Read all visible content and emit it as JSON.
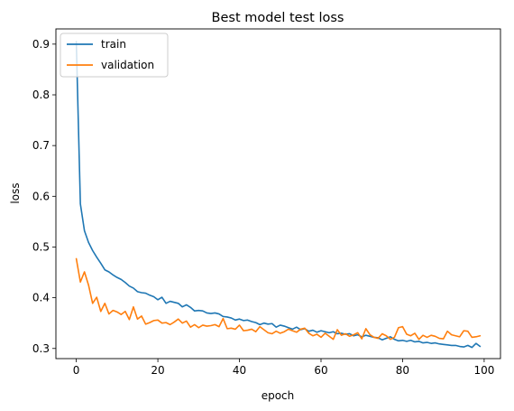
{
  "chart_data": {
    "type": "line",
    "title": "Best model test loss",
    "xlabel": "epoch",
    "ylabel": "loss",
    "xlim": [
      -5,
      104
    ],
    "ylim": [
      0.28,
      0.93
    ],
    "xticks": [
      0,
      20,
      40,
      60,
      80,
      100
    ],
    "yticks": [
      0.3,
      0.4,
      0.5,
      0.6,
      0.7,
      0.8,
      0.9
    ],
    "legend": {
      "placement": "upper-left"
    },
    "grid": false,
    "series": [
      {
        "name": "train",
        "color": "#1f77b4",
        "values": [
          0.905,
          0.585,
          0.532,
          0.509,
          0.493,
          0.48,
          0.468,
          0.455,
          0.451,
          0.445,
          0.44,
          0.436,
          0.43,
          0.423,
          0.419,
          0.412,
          0.41,
          0.409,
          0.405,
          0.402,
          0.396,
          0.401,
          0.389,
          0.393,
          0.391,
          0.389,
          0.382,
          0.386,
          0.381,
          0.374,
          0.375,
          0.374,
          0.37,
          0.369,
          0.37,
          0.368,
          0.363,
          0.362,
          0.36,
          0.356,
          0.358,
          0.355,
          0.356,
          0.353,
          0.351,
          0.347,
          0.35,
          0.348,
          0.349,
          0.342,
          0.346,
          0.344,
          0.341,
          0.338,
          0.342,
          0.337,
          0.339,
          0.334,
          0.336,
          0.332,
          0.335,
          0.333,
          0.331,
          0.333,
          0.329,
          0.33,
          0.328,
          0.329,
          0.325,
          0.327,
          0.323,
          0.326,
          0.324,
          0.322,
          0.321,
          0.317,
          0.32,
          0.323,
          0.318,
          0.315,
          0.316,
          0.314,
          0.316,
          0.313,
          0.314,
          0.311,
          0.312,
          0.31,
          0.311,
          0.309,
          0.308,
          0.307,
          0.306,
          0.306,
          0.304,
          0.303,
          0.306,
          0.302,
          0.31,
          0.304
        ]
      },
      {
        "name": "validation",
        "color": "#ff7f0e",
        "values": [
          0.477,
          0.431,
          0.451,
          0.425,
          0.389,
          0.401,
          0.373,
          0.389,
          0.368,
          0.375,
          0.372,
          0.367,
          0.373,
          0.357,
          0.382,
          0.358,
          0.364,
          0.348,
          0.351,
          0.355,
          0.356,
          0.35,
          0.351,
          0.347,
          0.352,
          0.358,
          0.35,
          0.354,
          0.342,
          0.347,
          0.341,
          0.346,
          0.344,
          0.345,
          0.347,
          0.343,
          0.359,
          0.339,
          0.34,
          0.338,
          0.346,
          0.335,
          0.336,
          0.338,
          0.333,
          0.343,
          0.337,
          0.331,
          0.329,
          0.334,
          0.33,
          0.333,
          0.338,
          0.335,
          0.332,
          0.338,
          0.34,
          0.33,
          0.325,
          0.328,
          0.322,
          0.33,
          0.324,
          0.318,
          0.337,
          0.326,
          0.329,
          0.324,
          0.327,
          0.331,
          0.319,
          0.339,
          0.327,
          0.322,
          0.32,
          0.329,
          0.325,
          0.318,
          0.322,
          0.341,
          0.343,
          0.328,
          0.325,
          0.33,
          0.318,
          0.326,
          0.322,
          0.326,
          0.324,
          0.32,
          0.319,
          0.334,
          0.327,
          0.325,
          0.323,
          0.335,
          0.334,
          0.322,
          0.323,
          0.325
        ]
      }
    ]
  }
}
